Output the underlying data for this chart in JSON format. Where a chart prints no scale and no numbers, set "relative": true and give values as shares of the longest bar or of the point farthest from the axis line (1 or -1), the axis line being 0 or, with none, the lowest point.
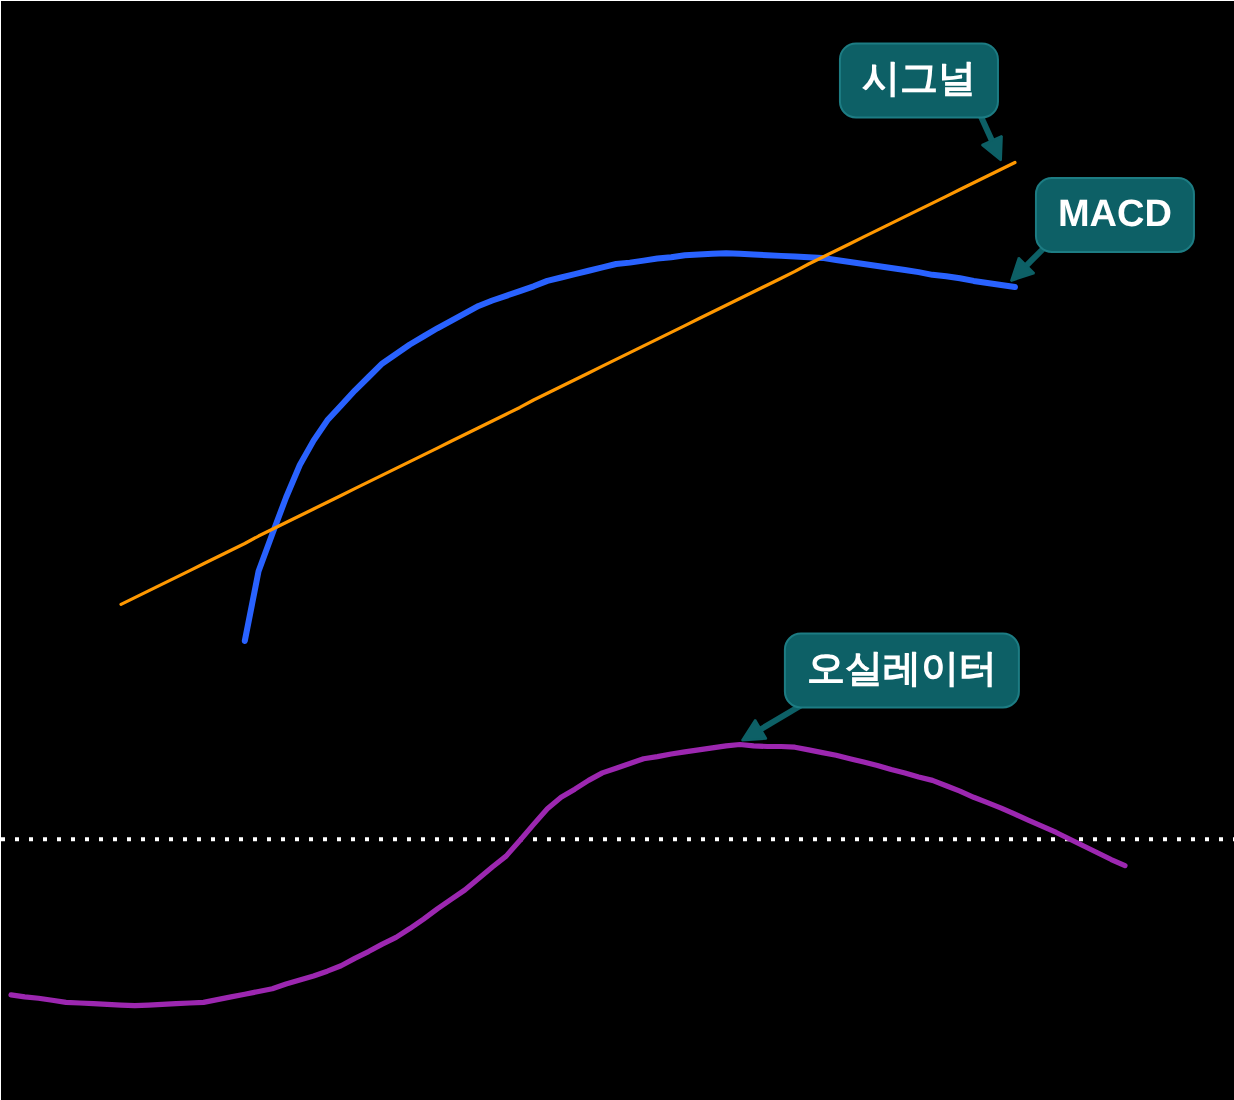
{
  "chart_data": {
    "type": "line",
    "relative": true,
    "categories": [
      null,
      null,
      null,
      null,
      null,
      null,
      null,
      null,
      null,
      null,
      null,
      null,
      null,
      null,
      null,
      null,
      null,
      null,
      null,
      null,
      null,
      null,
      null,
      null,
      null,
      null,
      null,
      null,
      null,
      null,
      null,
      null,
      null,
      null,
      null,
      null,
      null,
      null,
      null,
      null,
      null,
      null,
      null,
      null,
      null,
      null,
      null,
      null,
      null,
      null,
      null,
      null,
      null,
      null,
      null,
      null,
      null,
      null,
      null,
      null,
      null,
      null,
      null,
      null,
      null,
      null,
      null,
      null,
      null,
      null,
      null,
      null,
      null,
      null,
      null,
      null,
      null,
      null,
      null,
      null,
      null,
      null
    ],
    "series": [
      {
        "name": "MACD",
        "color": "#2962ff",
        "values": [
          null,
          null,
          null,
          null,
          null,
          null,
          null,
          null,
          null,
          null,
          null,
          null,
          null,
          null,
          null,
          null,
          null,
          0.293,
          0.396,
          0.451,
          0.505,
          0.553,
          0.589,
          0.619,
          0.641,
          0.663,
          0.683,
          0.703,
          0.717,
          0.731,
          0.743,
          0.755,
          0.766,
          0.777,
          0.788,
          0.796,
          0.803,
          0.81,
          0.817,
          0.825,
          0.83,
          0.835,
          0.84,
          0.845,
          0.85,
          0.852,
          0.855,
          0.858,
          0.86,
          0.863,
          0.864,
          0.865,
          0.866,
          0.865,
          0.864,
          0.863,
          0.862,
          0.861,
          0.86,
          0.859,
          0.856,
          0.853,
          0.85,
          0.847,
          0.844,
          0.841,
          0.838,
          0.834,
          0.832,
          0.829,
          0.825,
          0.822,
          0.819,
          0.816,
          null,
          null,
          null,
          null,
          null,
          null,
          null,
          null
        ]
      },
      {
        "name": "시그널",
        "color": "#ff9800",
        "values": [
          null,
          null,
          null,
          null,
          null,
          null,
          null,
          null,
          0.347,
          0.357,
          0.367,
          0.377,
          0.387,
          0.397,
          0.407,
          0.417,
          0.427,
          0.437,
          0.448,
          0.458,
          0.468,
          0.478,
          0.488,
          0.498,
          0.508,
          0.518,
          0.528,
          0.538,
          0.548,
          0.558,
          0.568,
          0.578,
          0.588,
          0.598,
          0.608,
          0.618,
          0.628,
          0.638,
          0.649,
          0.659,
          0.669,
          0.679,
          0.689,
          0.699,
          0.709,
          0.719,
          0.729,
          0.739,
          0.749,
          0.759,
          0.769,
          0.779,
          0.789,
          0.799,
          0.809,
          0.819,
          0.829,
          0.839,
          0.85,
          0.86,
          0.87,
          0.88,
          0.89,
          0.9,
          0.91,
          0.92,
          0.93,
          0.94,
          0.95,
          0.96,
          0.97,
          0.98,
          0.99,
          1.0,
          null,
          null,
          null,
          null,
          null,
          null,
          null,
          null
        ]
      },
      {
        "name": "오실레이터",
        "color": "#9c27b0",
        "values": [
          -0.23,
          -0.233,
          -0.235,
          -0.238,
          -0.241,
          -0.242,
          -0.243,
          -0.244,
          -0.245,
          -0.246,
          -0.245,
          -0.244,
          -0.243,
          -0.242,
          -0.241,
          -0.237,
          -0.233,
          -0.229,
          -0.225,
          -0.221,
          -0.214,
          -0.208,
          -0.202,
          -0.195,
          -0.187,
          -0.176,
          -0.166,
          -0.155,
          -0.145,
          -0.132,
          -0.118,
          -0.103,
          -0.089,
          -0.075,
          -0.058,
          -0.041,
          -0.025,
          -0.002,
          0.022,
          0.045,
          0.062,
          0.074,
          0.087,
          0.098,
          0.105,
          0.112,
          0.119,
          0.122,
          0.126,
          0.129,
          0.132,
          0.135,
          0.138,
          0.14,
          0.138,
          0.137,
          0.137,
          0.136,
          0.132,
          0.128,
          0.124,
          0.119,
          0.114,
          0.109,
          0.103,
          0.098,
          0.092,
          0.087,
          0.079,
          0.071,
          0.062,
          0.054,
          0.046,
          0.037,
          0.028,
          0.019,
          0.01,
          0,
          -0.01,
          -0.02,
          -0.03,
          -0.039
        ]
      }
    ],
    "ref_lines": [
      {
        "axis": "y",
        "value": 0,
        "color": "#ffffff",
        "line_style": "dotted"
      }
    ]
  }
}
